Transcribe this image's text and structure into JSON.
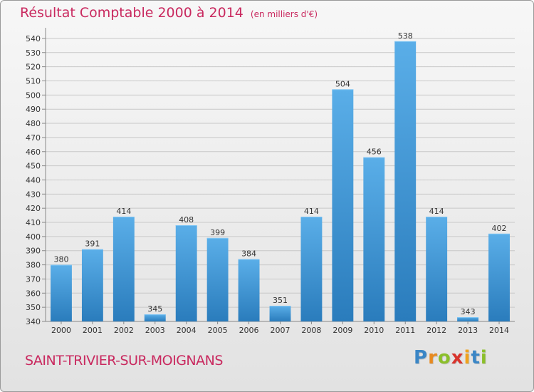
{
  "header": {
    "title": "Résultat Comptable 2000 à 2014",
    "unit": "(en milliers d'€)"
  },
  "footer": {
    "commune": "SAINT-TRIVIER-SUR-MOIGNANS",
    "logo_letters": [
      "P",
      "r",
      "o",
      "x",
      "i",
      "t",
      "i"
    ]
  },
  "colors": {
    "title": "#c9295f",
    "bar_top": "#5aaee8",
    "bar_bottom": "#2a7cbc",
    "logo": [
      "#3a86c6",
      "#e88a1f",
      "#8bbf2a",
      "#d8332c",
      "#f0a21c",
      "#3a86c6",
      "#8bbf2a"
    ]
  },
  "chart_data": {
    "type": "bar",
    "title": "Résultat Comptable 2000 à 2014",
    "ylabel": "en milliers d'€",
    "xlabel": "",
    "categories": [
      "2000",
      "2001",
      "2002",
      "2003",
      "2004",
      "2005",
      "2006",
      "2007",
      "2008",
      "2009",
      "2010",
      "2011",
      "2012",
      "2013",
      "2014"
    ],
    "values": [
      380,
      391,
      414,
      345,
      408,
      399,
      384,
      351,
      414,
      504,
      456,
      538,
      414,
      343,
      402
    ],
    "ylim": [
      340,
      545
    ],
    "yticks": [
      340,
      350,
      360,
      370,
      380,
      390,
      400,
      410,
      420,
      430,
      440,
      450,
      460,
      470,
      480,
      490,
      500,
      510,
      520,
      530,
      540
    ],
    "grid": true
  }
}
